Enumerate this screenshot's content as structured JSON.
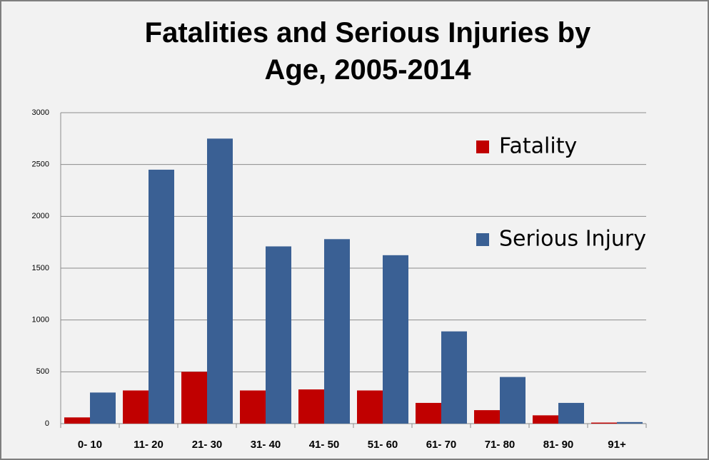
{
  "chart_data": {
    "type": "bar",
    "title": "Fatalities and Serious Injuries by Age, 2005-2014",
    "categories": [
      "0- 10",
      "11- 20",
      "21- 30",
      "31- 40",
      "41- 50",
      "51- 60",
      "61- 70",
      "71- 80",
      "81- 90",
      "91+"
    ],
    "series": [
      {
        "name": "Fatality",
        "color": "#c00000",
        "values": [
          60,
          320,
          500,
          320,
          330,
          320,
          200,
          130,
          80,
          10
        ]
      },
      {
        "name": "Serious Injury",
        "color": "#3a6094",
        "values": [
          300,
          2450,
          2750,
          1710,
          1780,
          1625,
          890,
          450,
          200,
          15
        ]
      }
    ],
    "ylim": [
      0,
      3000
    ],
    "yticks": [
      0,
      500,
      1000,
      1500,
      2000,
      2500,
      3000
    ],
    "grid": true,
    "legend": "upper right"
  }
}
